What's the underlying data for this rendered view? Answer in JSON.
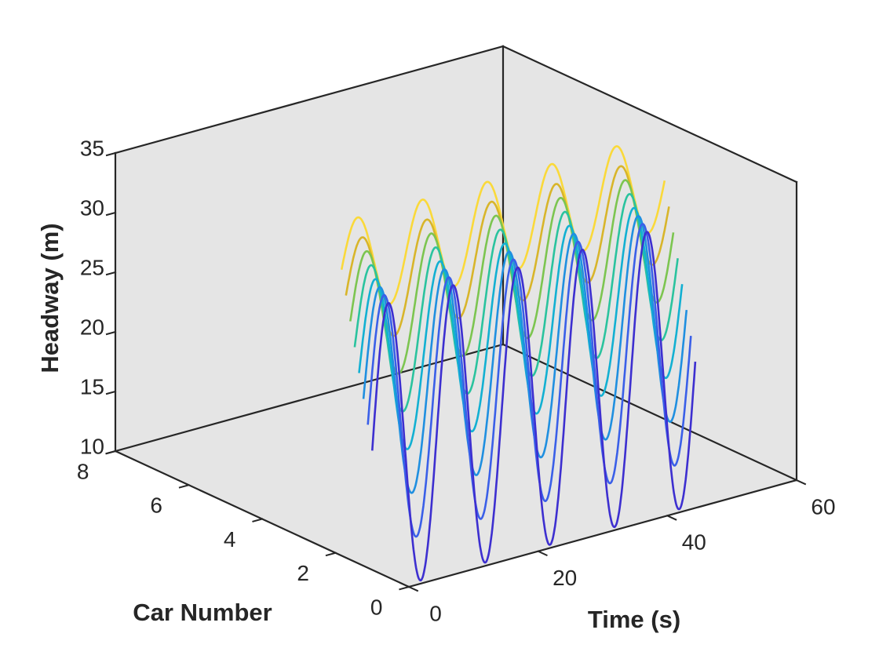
{
  "chart_data": {
    "type": "line",
    "projection": "3d",
    "title": "",
    "xlabel": "Time (s)",
    "ylabel": "Car Number",
    "zlabel": "Headway (m)",
    "xlim": [
      0,
      60
    ],
    "ylim": [
      0,
      8
    ],
    "zlim": [
      10,
      35
    ],
    "x_ticks": [
      "0",
      "20",
      "40",
      "60"
    ],
    "y_ticks": [
      "0",
      "2",
      "4",
      "6",
      "8"
    ],
    "z_ticks": [
      "10",
      "15",
      "20",
      "25",
      "30",
      "35"
    ],
    "grid": false,
    "background": "#e5e5e5",
    "waveform": "sinusoid",
    "period_s": 10,
    "series": [
      {
        "car": 1,
        "t_start": 0,
        "t_end": 50,
        "mean": 20,
        "amplitude": 12.0,
        "color": "#3d2fd0"
      },
      {
        "car": 2,
        "t_start": 5,
        "t_end": 55,
        "mean": 20,
        "amplitude": 10.5,
        "color": "#3a5fe8"
      },
      {
        "car": 3,
        "t_start": 10,
        "t_end": 60,
        "mean": 20,
        "amplitude": 9.0,
        "color": "#1f8fe0"
      },
      {
        "car": 4,
        "t_start": 15,
        "t_end": 65,
        "mean": 20,
        "amplitude": 7.5,
        "color": "#12b0d2"
      },
      {
        "car": 5,
        "t_start": 20,
        "t_end": 70,
        "mean": 20,
        "amplitude": 6.5,
        "color": "#2ac39e"
      },
      {
        "car": 6,
        "t_start": 25,
        "t_end": 75,
        "mean": 20,
        "amplitude": 5.5,
        "color": "#7cc550"
      },
      {
        "car": 7,
        "t_start": 30,
        "t_end": 80,
        "mean": 20,
        "amplitude": 4.5,
        "color": "#d8b52a"
      },
      {
        "car": 8,
        "t_start": 35,
        "t_end": 85,
        "mean": 20,
        "amplitude": 4.0,
        "color": "#fad93a"
      }
    ]
  }
}
